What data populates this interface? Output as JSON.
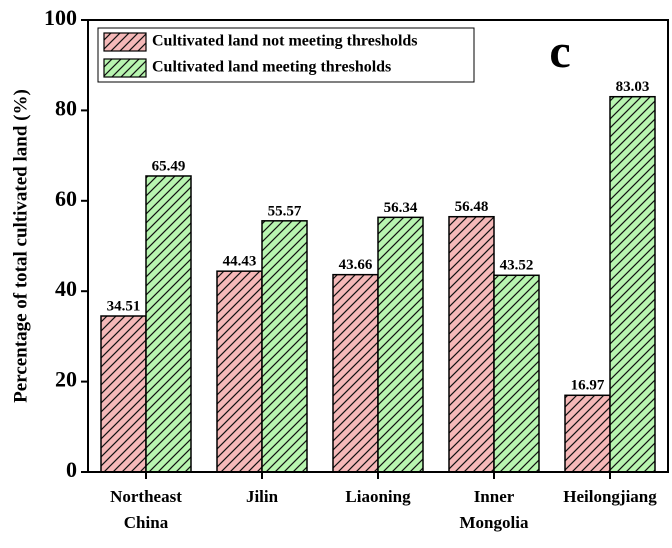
{
  "chart_data": {
    "type": "bar",
    "annotation": "c",
    "ylabel": "Percentage of total cultivated land (%)",
    "categories": [
      "Northeast China",
      "Jilin",
      "Liaoning",
      "Inner Mongolia",
      "Heilongjiang"
    ],
    "series": [
      {
        "name": "Cultivated land not meeting thresholds",
        "color": "#f5b8b8",
        "values": [
          34.51,
          44.43,
          43.66,
          56.48,
          16.97
        ]
      },
      {
        "name": "Cultivated land meeting thresholds",
        "color": "#b8f5b0",
        "values": [
          65.49,
          55.57,
          56.34,
          43.52,
          83.03
        ]
      }
    ],
    "ylim": [
      0,
      100
    ],
    "yticks": [
      0,
      20,
      40,
      60,
      80,
      100
    ],
    "hatch": true
  }
}
